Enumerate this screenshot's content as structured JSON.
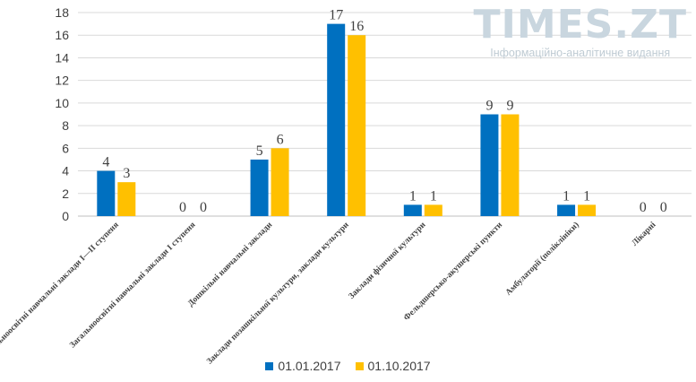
{
  "watermark": {
    "title": "TIMES.ZT",
    "subtitle": "Інформаційно-аналітичне видання"
  },
  "colors": {
    "series_1": "#0070c0",
    "series_2": "#ffc000",
    "grid": "#d9d9d9",
    "text": "#404040"
  },
  "chart_data": {
    "type": "bar",
    "title": "",
    "xlabel": "",
    "ylabel": "",
    "ylim": [
      0,
      18
    ],
    "yticks": [
      0,
      2,
      4,
      6,
      8,
      10,
      12,
      14,
      16,
      18
    ],
    "grid": true,
    "legend_position": "bottom",
    "categories": [
      "Загальноосвітні навчальні заклади I—II ступеня",
      "Загальноосвітні навчальні заклади I ступеня",
      "Дошкільні навчальні заклади",
      "Заклади позашкільної культури, заклади культури",
      "Заклади фізичної культури",
      "Фельдшерсько-акушерські пункти",
      "Амбулаторії (поліклініки)",
      "Лікарні"
    ],
    "series": [
      {
        "name": "01.01.2017",
        "values": [
          4,
          0,
          5,
          17,
          1,
          9,
          1,
          0
        ]
      },
      {
        "name": "01.10.2017",
        "values": [
          3,
          0,
          6,
          16,
          1,
          9,
          1,
          0
        ]
      }
    ]
  }
}
